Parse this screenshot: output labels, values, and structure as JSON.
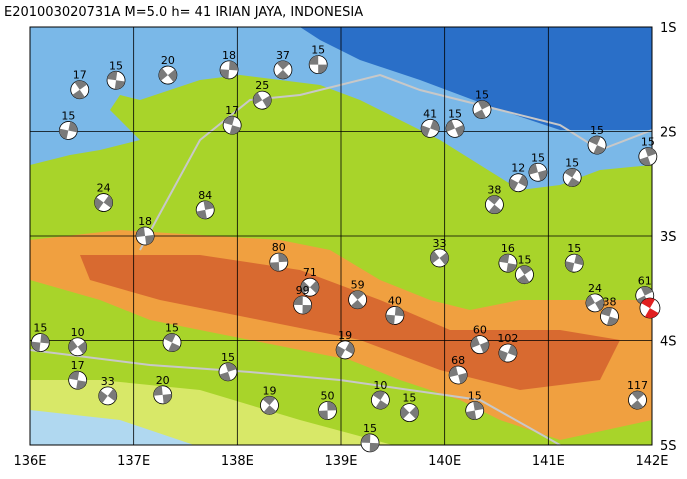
{
  "title": "E201003020731A M=5.0 h= 41 IRIAN JAYA, INDONESIA",
  "map": {
    "lon_ticks": [
      {
        "value": 136,
        "label": "136E"
      },
      {
        "value": 137,
        "label": "137E"
      },
      {
        "value": 138,
        "label": "138E"
      },
      {
        "value": 139,
        "label": "139E"
      },
      {
        "value": 140,
        "label": "140E"
      },
      {
        "value": 141,
        "label": "141E"
      },
      {
        "value": 142,
        "label": "142E"
      }
    ],
    "lat_ticks": [
      {
        "value": 1,
        "label": "1S"
      },
      {
        "value": 2,
        "label": "2S"
      },
      {
        "value": 3,
        "label": "3S"
      },
      {
        "value": 4,
        "label": "4S"
      },
      {
        "value": 5,
        "label": "5S"
      }
    ],
    "main_event": {
      "lon": 141.98,
      "lat": 3.69
    },
    "events": [
      {
        "lon": 138.78,
        "lat": 1.36,
        "depth": 15
      },
      {
        "lon": 138.44,
        "lat": 1.41,
        "depth": 37
      },
      {
        "lon": 137.92,
        "lat": 1.41,
        "depth": 18
      },
      {
        "lon": 137.33,
        "lat": 1.46,
        "depth": 20
      },
      {
        "lon": 136.83,
        "lat": 1.51,
        "depth": 15
      },
      {
        "lon": 136.48,
        "lat": 1.6,
        "depth": 17
      },
      {
        "lon": 136.37,
        "lat": 1.99,
        "depth": 15
      },
      {
        "lon": 138.24,
        "lat": 1.7,
        "depth": 25
      },
      {
        "lon": 137.95,
        "lat": 1.94,
        "depth": 17
      },
      {
        "lon": 140.36,
        "lat": 1.79,
        "depth": 15
      },
      {
        "lon": 139.86,
        "lat": 1.97,
        "depth": 41
      },
      {
        "lon": 140.1,
        "lat": 1.97,
        "depth": 15
      },
      {
        "lon": 141.47,
        "lat": 2.13,
        "depth": 15
      },
      {
        "lon": 141.96,
        "lat": 2.24,
        "depth": 15
      },
      {
        "lon": 140.71,
        "lat": 2.49,
        "depth": 12
      },
      {
        "lon": 140.9,
        "lat": 2.39,
        "depth": 15
      },
      {
        "lon": 141.23,
        "lat": 2.44,
        "depth": 15
      },
      {
        "lon": 137.69,
        "lat": 2.75,
        "depth": 84
      },
      {
        "lon": 136.71,
        "lat": 2.68,
        "depth": 24
      },
      {
        "lon": 137.11,
        "lat": 3.0,
        "depth": 18
      },
      {
        "lon": 140.48,
        "lat": 2.7,
        "depth": 38
      },
      {
        "lon": 138.4,
        "lat": 3.25,
        "depth": 80
      },
      {
        "lon": 138.7,
        "lat": 3.49,
        "depth": 71
      },
      {
        "lon": 138.63,
        "lat": 3.66,
        "depth": 99
      },
      {
        "lon": 139.16,
        "lat": 3.61,
        "depth": 59
      },
      {
        "lon": 139.52,
        "lat": 3.76,
        "depth": 40
      },
      {
        "lon": 139.95,
        "lat": 3.21,
        "depth": 33
      },
      {
        "lon": 140.61,
        "lat": 3.26,
        "depth": 16
      },
      {
        "lon": 140.77,
        "lat": 3.37,
        "depth": 15
      },
      {
        "lon": 141.25,
        "lat": 3.26,
        "depth": 15
      },
      {
        "lon": 141.45,
        "lat": 3.64,
        "depth": 24
      },
      {
        "lon": 141.59,
        "lat": 3.77,
        "depth": 38
      },
      {
        "lon": 141.93,
        "lat": 3.57,
        "depth": 61
      },
      {
        "lon": 140.61,
        "lat": 4.12,
        "depth": 102
      },
      {
        "lon": 140.34,
        "lat": 4.04,
        "depth": 60
      },
      {
        "lon": 137.37,
        "lat": 4.02,
        "depth": 15
      },
      {
        "lon": 137.91,
        "lat": 4.3,
        "depth": 15
      },
      {
        "lon": 139.04,
        "lat": 4.09,
        "depth": 19
      },
      {
        "lon": 140.13,
        "lat": 4.33,
        "depth": 68
      },
      {
        "lon": 139.38,
        "lat": 4.57,
        "depth": 10
      },
      {
        "lon": 140.29,
        "lat": 4.67,
        "depth": 15
      },
      {
        "lon": 136.75,
        "lat": 4.53,
        "depth": 33
      },
      {
        "lon": 137.28,
        "lat": 4.52,
        "depth": 20
      },
      {
        "lon": 138.31,
        "lat": 4.62,
        "depth": 19
      },
      {
        "lon": 138.87,
        "lat": 4.67,
        "depth": 50
      },
      {
        "lon": 139.66,
        "lat": 4.69,
        "depth": 15
      },
      {
        "lon": 139.28,
        "lat": 4.98,
        "depth": 15
      },
      {
        "lon": 141.86,
        "lat": 4.57,
        "depth": 117
      },
      {
        "lon": 136.1,
        "lat": 4.02,
        "depth": 15
      },
      {
        "lon": 136.46,
        "lat": 4.06,
        "depth": 10
      },
      {
        "lon": 136.46,
        "lat": 4.38,
        "depth": 17
      }
    ]
  }
}
